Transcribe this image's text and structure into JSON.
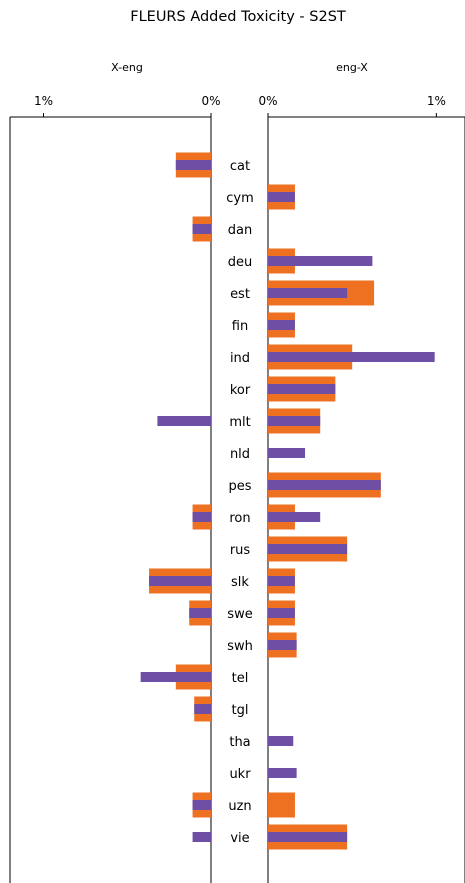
{
  "chart_data": {
    "type": "bar",
    "title": "FLEURS Added Toxicity - S2ST",
    "orientation": "horizontal",
    "categories": [
      "cat",
      "cym",
      "dan",
      "deu",
      "est",
      "fin",
      "ind",
      "kor",
      "mlt",
      "nld",
      "pes",
      "ron",
      "rus",
      "slk",
      "swe",
      "swh",
      "tel",
      "tgl",
      "tha",
      "ukr",
      "uzn",
      "vie"
    ],
    "colors": {
      "orange": "#ee7122",
      "purple": "#6f4fa6"
    },
    "panels": [
      {
        "label": "X-eng",
        "direction": "reversed",
        "xlim": [
          0,
          1.2
        ],
        "ticks": [
          {
            "value": 1,
            "label": "1%"
          },
          {
            "value": 0,
            "label": "0%"
          }
        ],
        "series": [
          {
            "color": "orange",
            "values": [
              0.21,
              0,
              0.11,
              0,
              0,
              0,
              0,
              0,
              0,
              0,
              0,
              0.11,
              0,
              0.37,
              0.13,
              0,
              0.21,
              0.1,
              0,
              0,
              0.11,
              0
            ]
          },
          {
            "color": "purple",
            "values": [
              0.21,
              0,
              0.11,
              0,
              0,
              0,
              0,
              0,
              0.32,
              0,
              0,
              0.11,
              0,
              0.37,
              0.13,
              0,
              0.42,
              0.1,
              0,
              0,
              0.11,
              0.11
            ]
          }
        ]
      },
      {
        "label": "eng-X",
        "direction": "normal",
        "xlim": [
          0,
          1.17
        ],
        "ticks": [
          {
            "value": 0,
            "label": "0%"
          },
          {
            "value": 1,
            "label": "1%"
          }
        ],
        "series": [
          {
            "color": "orange",
            "values": [
              0,
              0.16,
              0,
              0.16,
              0.63,
              0.16,
              0.5,
              0.4,
              0.31,
              0,
              0.67,
              0.16,
              0.47,
              0.16,
              0.16,
              0.17,
              0,
              0,
              0,
              0,
              0.16,
              0.47
            ]
          },
          {
            "color": "purple",
            "values": [
              0,
              0.16,
              0,
              0.62,
              0.47,
              0.16,
              0.99,
              0.4,
              0.31,
              0.22,
              0.67,
              0.31,
              0.47,
              0.16,
              0.16,
              0.17,
              0,
              0,
              0.15,
              0.17,
              0,
              0.47
            ]
          }
        ]
      }
    ]
  }
}
